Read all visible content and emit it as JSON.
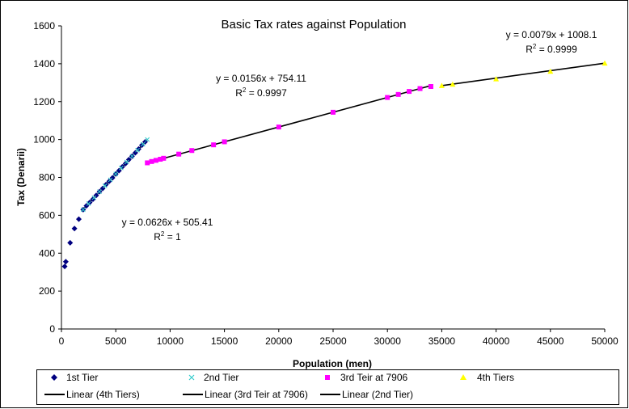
{
  "chart_data": {
    "type": "scatter",
    "title": "Basic Tax rates against Population",
    "xlabel": "Population (men)",
    "ylabel": "Tax (Denarii)",
    "xlim": [
      0,
      50000
    ],
    "ylim": [
      0,
      1600
    ],
    "xticks": [
      0,
      5000,
      10000,
      15000,
      20000,
      25000,
      30000,
      35000,
      40000,
      45000,
      50000
    ],
    "yticks": [
      0,
      200,
      400,
      600,
      800,
      1000,
      1200,
      1400,
      1600
    ],
    "grid": false,
    "series": [
      {
        "name": "1st Tier",
        "marker": "diamond",
        "color": "#000080",
        "points": [
          [
            300,
            330
          ],
          [
            400,
            355
          ],
          [
            800,
            455
          ],
          [
            1200,
            530
          ],
          [
            1600,
            580
          ],
          [
            2000,
            630
          ],
          [
            2300,
            650
          ],
          [
            2600,
            668
          ],
          [
            2900,
            685
          ],
          [
            3200,
            705
          ],
          [
            3500,
            725
          ],
          [
            3800,
            742
          ],
          [
            4100,
            762
          ],
          [
            4400,
            780
          ],
          [
            4700,
            798
          ],
          [
            5000,
            818
          ],
          [
            5300,
            836
          ],
          [
            5600,
            856
          ],
          [
            5900,
            873
          ],
          [
            6200,
            894
          ],
          [
            6500,
            912
          ],
          [
            6800,
            930
          ],
          [
            7100,
            950
          ],
          [
            7400,
            970
          ],
          [
            7700,
            988
          ]
        ]
      },
      {
        "name": "2nd Tier",
        "marker": "x",
        "color": "#33cccc",
        "points": [
          [
            2000,
            630
          ],
          [
            2500,
            662
          ],
          [
            3000,
            693
          ],
          [
            3500,
            725
          ],
          [
            4000,
            756
          ],
          [
            4500,
            787
          ],
          [
            5000,
            818
          ],
          [
            5500,
            850
          ],
          [
            6000,
            881
          ],
          [
            6500,
            912
          ],
          [
            7000,
            944
          ],
          [
            7500,
            975
          ],
          [
            7900,
            1000
          ]
        ]
      },
      {
        "name": "3rd Teir at 7906",
        "marker": "square",
        "color": "#ff00ff",
        "points": [
          [
            7906,
            877
          ],
          [
            8300,
            884
          ],
          [
            8700,
            890
          ],
          [
            9100,
            896
          ],
          [
            9400,
            901
          ],
          [
            10800,
            923
          ],
          [
            12000,
            942
          ],
          [
            14000,
            972
          ],
          [
            15000,
            988
          ],
          [
            20000,
            1066
          ],
          [
            25000,
            1144
          ],
          [
            30000,
            1222
          ],
          [
            31000,
            1238
          ],
          [
            32000,
            1254
          ],
          [
            33000,
            1269
          ],
          [
            34000,
            1280
          ]
        ]
      },
      {
        "name": "4th Tiers",
        "marker": "triangle",
        "color": "#ffff00",
        "points": [
          [
            35000,
            1285
          ],
          [
            36000,
            1292
          ],
          [
            40000,
            1320
          ],
          [
            45000,
            1360
          ],
          [
            50000,
            1403
          ]
        ]
      }
    ],
    "trendlines": [
      {
        "name": "Linear (4th Tiers)",
        "slope": 0.0079,
        "intercept": 1008.1,
        "x_range": [
          35000,
          50000
        ]
      },
      {
        "name": "Linear (3rd Teir at 7906)",
        "slope": 0.0156,
        "intercept": 754.11,
        "x_range": [
          7906,
          34000
        ]
      },
      {
        "name": "Linear (2nd Tier)",
        "slope": 0.0626,
        "intercept": 505.41,
        "x_range": [
          2000,
          7900
        ]
      }
    ],
    "annotations": [
      {
        "line1": "y = 0.0079x + 1008.1",
        "r2": "0.9999"
      },
      {
        "line1": "y = 0.0156x + 754.11",
        "r2": "0.9997"
      },
      {
        "line1": "y = 0.0626x + 505.41",
        "r2": "1"
      }
    ],
    "legend_position": "bottom"
  }
}
